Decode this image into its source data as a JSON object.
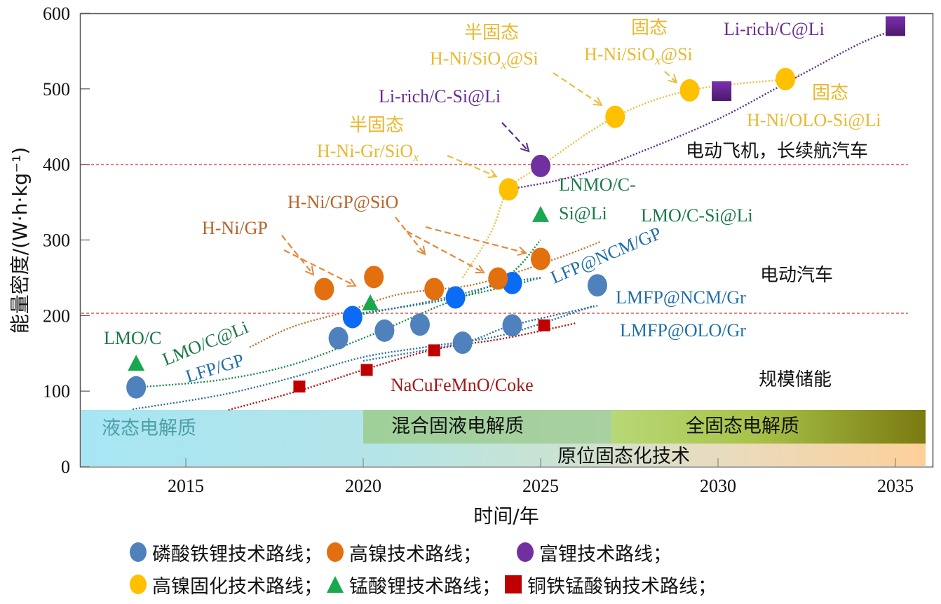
{
  "chart_data": {
    "type": "scatter",
    "title": "",
    "xlabel": "时间/年",
    "ylabel": "能量密度/(W·h·kg⁻¹)",
    "xlim": [
      2012.1,
      2035.8
    ],
    "ylim": [
      0,
      600
    ],
    "x_ticks": [
      2015,
      2020,
      2025,
      2030,
      2035
    ],
    "y_ticks": [
      0,
      100,
      200,
      300,
      400,
      500,
      600
    ],
    "x_tick_labels": [
      "2015",
      "2020",
      "2025",
      "2030",
      "2035"
    ],
    "y_tick_labels": [
      "0",
      "100",
      "200",
      "300",
      "400",
      "500",
      "600"
    ],
    "reference_lines": [
      {
        "y": 203,
        "label": "电动汽车",
        "label_below": "规模储能",
        "color": "#d9534f"
      },
      {
        "y": 400,
        "label": "电动飞机，长续航汽车",
        "color": "#d9534f"
      }
    ],
    "series": [
      {
        "name": "磷酸铁锂技术路线",
        "marker": "circle",
        "color": "#4f81bd",
        "points": [
          [
            2013.6,
            105
          ],
          [
            2019.3,
            170
          ],
          [
            2020.6,
            180
          ],
          [
            2021.6,
            188
          ],
          [
            2022.8,
            164
          ],
          [
            2024.2,
            187
          ],
          [
            2026.6,
            240
          ]
        ]
      },
      {
        "name": "LFP@NCM",
        "marker": "circle",
        "color": "#0a6cf5",
        "in_legend": false,
        "points": [
          [
            2019.7,
            198
          ],
          [
            2022.6,
            224
          ],
          [
            2024.2,
            243
          ]
        ]
      },
      {
        "name": "高镍技术路线",
        "marker": "circle",
        "color": "#e2700f",
        "points": [
          [
            2018.9,
            235
          ],
          [
            2020.3,
            251
          ],
          [
            2022.0,
            235
          ],
          [
            2023.8,
            249
          ],
          [
            2025.0,
            275
          ]
        ]
      },
      {
        "name": "富锂技术路线",
        "marker": "circle",
        "color": "#7030a0",
        "points": [
          [
            2025.0,
            398
          ]
        ]
      },
      {
        "name": "富锂(方块)",
        "marker": "square",
        "color": "#6a2a9a",
        "in_legend": false,
        "points": [
          [
            2030.1,
            497
          ],
          [
            2035.0,
            583
          ]
        ]
      },
      {
        "name": "高镍固化技术路线",
        "marker": "circle",
        "color": "#ffc000",
        "points": [
          [
            2024.1,
            367
          ],
          [
            2027.1,
            463
          ],
          [
            2029.2,
            498
          ],
          [
            2031.9,
            513
          ]
        ]
      },
      {
        "name": "锰酸锂技术路线",
        "marker": "triangle",
        "color": "#1aa84f",
        "points": [
          [
            2013.6,
            137
          ],
          [
            2020.2,
            217
          ],
          [
            2025.0,
            334
          ]
        ]
      },
      {
        "name": "铜铁锰酸钠技术路线",
        "marker": "square",
        "color": "#c00000",
        "points": [
          [
            2018.2,
            106
          ],
          [
            2020.1,
            128
          ],
          [
            2022.0,
            154
          ],
          [
            2025.1,
            187
          ]
        ]
      }
    ],
    "trend_lines": [
      {
        "name": "LFP/GP",
        "color": "#2e6da4",
        "points": [
          [
            2013.5,
            76
          ],
          [
            2016,
            95
          ],
          [
            2018,
            118
          ],
          [
            2020,
            145
          ],
          [
            2022,
            160
          ],
          [
            2024,
            175
          ],
          [
            2026.5,
            213
          ]
        ]
      },
      {
        "name": "LMO/C@Li",
        "color": "#1a8a4a",
        "points": [
          [
            2013.9,
            106
          ],
          [
            2016,
            115
          ],
          [
            2018,
            135
          ],
          [
            2020,
            170
          ],
          [
            2022,
            210
          ],
          [
            2024,
            250
          ],
          [
            2025,
            300
          ]
        ]
      },
      {
        "name": "LMO/C-Si@Li",
        "color": "#1a8a4a",
        "points": [
          [
            2019.9,
            203
          ],
          [
            2022,
            218
          ],
          [
            2024,
            238
          ],
          [
            2025,
            250
          ]
        ]
      },
      {
        "name": "H-Ni/GP",
        "color": "#c0702a",
        "points": [
          [
            2016.8,
            158
          ],
          [
            2018,
            185
          ],
          [
            2019.5,
            205
          ],
          [
            2021,
            228
          ],
          [
            2023,
            240
          ],
          [
            2024.5,
            260
          ],
          [
            2026,
            285
          ],
          [
            2026.7,
            298
          ]
        ]
      },
      {
        "name": "LFP@NCM/GP",
        "color": "#2e6da4",
        "points": [
          [
            2020,
            202
          ],
          [
            2022,
            220
          ],
          [
            2024,
            243
          ],
          [
            2025,
            250
          ]
        ]
      },
      {
        "name": "NaCuFeMnO/Coke",
        "color": "#b01010",
        "points": [
          [
            2016.2,
            75
          ],
          [
            2018.3,
            102
          ],
          [
            2020,
            128
          ],
          [
            2022,
            155
          ],
          [
            2024,
            170
          ],
          [
            2026,
            190
          ]
        ]
      },
      {
        "name": "LMFP@OLO/Gr",
        "color": "#2e6da4",
        "points": [
          [
            2020,
            140
          ],
          [
            2022.8,
            164
          ],
          [
            2024.2,
            187
          ],
          [
            2026.6,
            213
          ]
        ]
      },
      {
        "name": "高镍固化",
        "color": "#e8c040",
        "points": [
          [
            2022.8,
            250
          ],
          [
            2023.6,
            310
          ],
          [
            2024.1,
            367
          ],
          [
            2025,
            398
          ],
          [
            2027.1,
            463
          ],
          [
            2029.2,
            498
          ],
          [
            2031.9,
            513
          ],
          [
            2032.3,
            520
          ]
        ]
      },
      {
        "name": "富锂",
        "color": "#5a2a8a",
        "points": [
          [
            2024.1,
            367
          ],
          [
            2026,
            385
          ],
          [
            2028,
            420
          ],
          [
            2030,
            460
          ],
          [
            2032,
            510
          ],
          [
            2034,
            560
          ],
          [
            2035,
            578
          ]
        ]
      }
    ],
    "annotations": [
      {
        "text": "LMO/C",
        "color": "#1a7a45"
      },
      {
        "text": "LMO/C@Li",
        "color": "#1a7a45"
      },
      {
        "text": "LFP/GP",
        "color": "#1f6fa8"
      },
      {
        "text": "H-Ni/GP",
        "color": "#b5652a"
      },
      {
        "text": "H-Ni/GP@SiO",
        "color": "#b5652a"
      },
      {
        "text": "半固态",
        "color": "#e8b830"
      },
      {
        "text": "H-Ni-Gr/SiOx",
        "color": "#e8b830"
      },
      {
        "text": "Li-rich/C-Si@Li",
        "color": "#6a2d91"
      },
      {
        "text": "半固态",
        "color": "#e8b830"
      },
      {
        "text": "H-Ni/SiOx@Si",
        "color": "#e8b830"
      },
      {
        "text": "固态",
        "color": "#e8b830"
      },
      {
        "text": "H-Ni/SiOx@Si",
        "color": "#e8b830"
      },
      {
        "text": "Li-rich/C@Li",
        "color": "#6a2d91"
      },
      {
        "text": "固态",
        "color": "#e8b830"
      },
      {
        "text": "H-Ni/OLO-Si@Li",
        "color": "#e8b830"
      },
      {
        "text": "LNMO/C-",
        "color": "#1a7a45"
      },
      {
        "text": "Si@Li",
        "color": "#1a7a45"
      },
      {
        "text": "LMO/C-Si@Li",
        "color": "#1a7a45"
      },
      {
        "text": "LFP@NCM/GP",
        "color": "#1f6fa8"
      },
      {
        "text": "LMFP@NCM/Gr",
        "color": "#1f6fa8"
      },
      {
        "text": "LMFP@OLO/Gr",
        "color": "#1f6fa8"
      },
      {
        "text": "NaCuFeMnO/Coke",
        "color": "#a01818"
      }
    ],
    "region_labels": [
      "电动飞机，长续航汽车",
      "电动汽车",
      "规模储能"
    ],
    "electrolyte_bands": [
      {
        "label": "液态电解质",
        "x_start": 2012.1,
        "x_end": 2035.8
      },
      {
        "label": "混合固液电解质",
        "x_start": 2020,
        "x_end": 2027
      },
      {
        "label": "全固态电解质",
        "x_start": 2027,
        "x_end": 2035.8
      },
      {
        "label": "原位固态化技术",
        "x_start": 2020,
        "x_end": 2035.8
      }
    ],
    "legend": [
      [
        {
          "label": "磷酸铁锂技术路线；",
          "marker": "circle",
          "color": "#4f81bd"
        },
        {
          "label": "高镍技术路线；",
          "marker": "circle",
          "color": "#e2700f"
        },
        {
          "label": "富锂技术路线；",
          "marker": "circle",
          "color": "#7030a0"
        }
      ],
      [
        {
          "label": "高镍固化技术路线；",
          "marker": "circle",
          "color": "#ffc000"
        },
        {
          "label": "锰酸锂技术路线；",
          "marker": "triangle",
          "color": "#1aa84f"
        },
        {
          "label": "铜铁锰酸钠技术路线；",
          "marker": "square",
          "color": "#c00000"
        }
      ]
    ],
    "legend_position": "bottom",
    "grid": false
  }
}
